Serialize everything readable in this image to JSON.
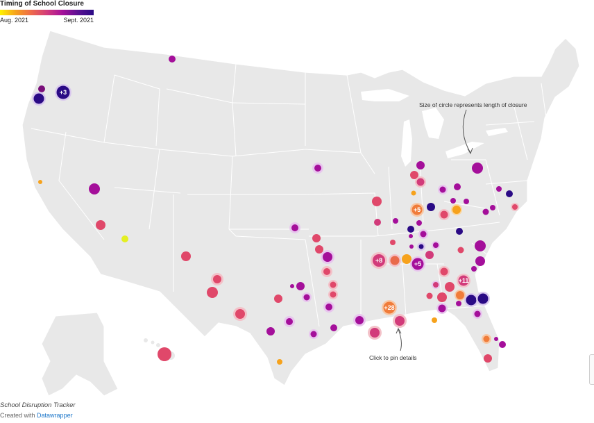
{
  "legend": {
    "title": "Timing of School Closure",
    "start_label": "Aug. 2021",
    "end_label": "Sept. 2021",
    "gradient": [
      "#fff200",
      "#f6a21c",
      "#ee6a4b",
      "#d23b7a",
      "#a40f9a",
      "#5a1192",
      "#2a0a85"
    ]
  },
  "annotations": {
    "size_note": "Size of circle represents length of closure",
    "pin_note": "Click to pin details"
  },
  "footer": {
    "title": "School Disruption Tracker",
    "credit_prefix": "Created with",
    "credit_link": "Datawrapper"
  },
  "cluster_labels": [
    "+3",
    "+5",
    "+8",
    "+5",
    "+28",
    "+11"
  ],
  "colors": {
    "land": "#e8e8e8",
    "border": "#ffffff",
    "pin_arrow": "#555555"
  }
}
